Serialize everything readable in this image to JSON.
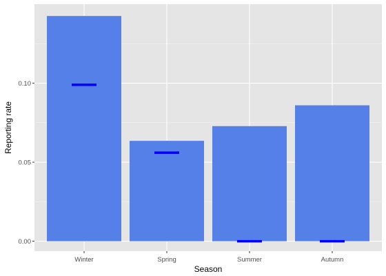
{
  "chart_data": {
    "type": "bar",
    "xlabel": "Season",
    "ylabel": "Reporting rate",
    "categories": [
      "Winter",
      "Spring",
      "Summer",
      "Autumn"
    ],
    "series": [
      {
        "values": [
          0.1425,
          0.0635,
          0.0728,
          0.086
        ]
      }
    ],
    "markers": [
      0.099,
      0.056,
      0.0,
      0.0
    ],
    "ylim": [
      -0.0063,
      0.15
    ],
    "yticks": [
      0.0,
      0.05,
      0.1
    ],
    "ytick_labels": [
      "0.00",
      "0.05",
      "0.10"
    ],
    "grid": true,
    "legend": "none",
    "colors": {
      "bar": "#5580e8",
      "marker": "#0000ff",
      "panel": "#e5e5e5",
      "grid_major": "#ffffff",
      "grid_minor": "#f2f2f2"
    }
  }
}
